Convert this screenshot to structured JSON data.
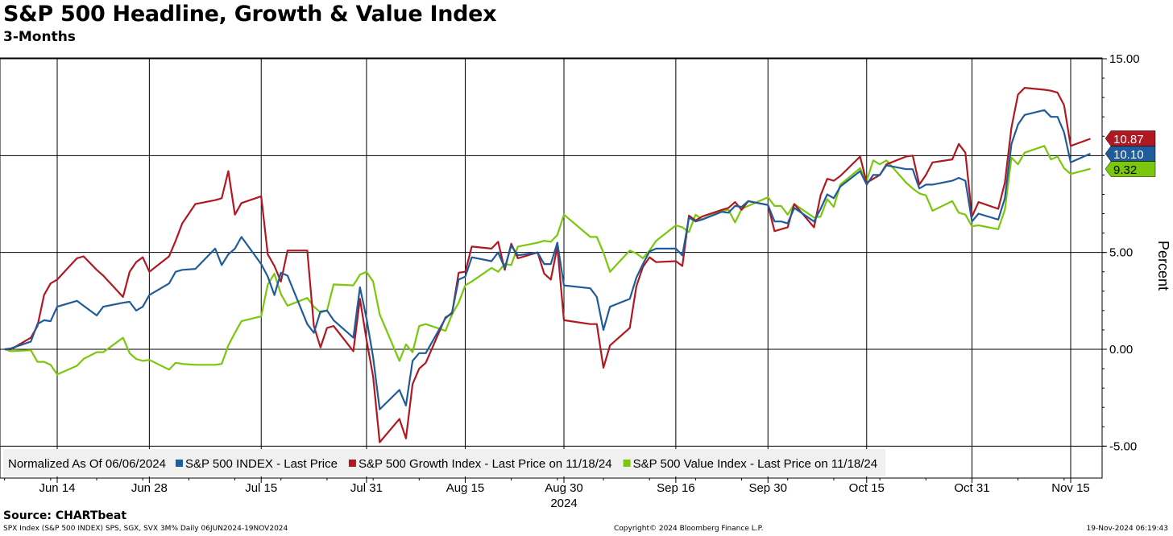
{
  "header": {
    "title": "S&P 500 Headline, Growth & Value Index",
    "subtitle": "3-Months"
  },
  "footer": {
    "source": "Source: CHARTbeat",
    "ticker_info": "SPX Index (S&P 500 INDEX) SPS, SGX, SVX 3M%  Daily 06JUN2024-19NOV2024",
    "copyright": "Copyright© 2024 Bloomberg Finance L.P.",
    "timestamp": "19-Nov-2024 06:19:43"
  },
  "legend": {
    "normalized_label": "Normalized As Of 06/06/2024"
  },
  "chart_data": {
    "type": "line",
    "ylabel": "Percent",
    "ylim": [
      -5.8,
      15.0
    ],
    "yticks": [
      15.0,
      5.0,
      0.0,
      -5.0
    ],
    "ytick_labels": [
      "15.00",
      "5.00",
      "0.00",
      "-5.00"
    ],
    "y_grid_values": [
      10.0
    ],
    "xlabel": "2024",
    "x_tick_dates": [
      "2024-06-14",
      "2024-06-28",
      "2024-07-15",
      "2024-07-31",
      "2024-08-15",
      "2024-08-30",
      "2024-09-16",
      "2024-09-30",
      "2024-10-15",
      "2024-10-31",
      "2024-11-15"
    ],
    "x_tick_labels": [
      "Jun 14",
      "Jun 28",
      "Jul 15",
      "Jul 31",
      "Aug 15",
      "Aug 30",
      "Sep 16",
      "Sep 30",
      "Oct 15",
      "Oct 31",
      "Nov 15"
    ],
    "grid": true,
    "legend_position": "bottom-left",
    "dates": [
      "2024-06-06",
      "2024-06-07",
      "2024-06-10",
      "2024-06-11",
      "2024-06-12",
      "2024-06-13",
      "2024-06-14",
      "2024-06-17",
      "2024-06-18",
      "2024-06-20",
      "2024-06-21",
      "2024-06-24",
      "2024-06-25",
      "2024-06-26",
      "2024-06-27",
      "2024-06-28",
      "2024-07-01",
      "2024-07-02",
      "2024-07-03",
      "2024-07-05",
      "2024-07-08",
      "2024-07-09",
      "2024-07-10",
      "2024-07-11",
      "2024-07-12",
      "2024-07-15",
      "2024-07-16",
      "2024-07-17",
      "2024-07-18",
      "2024-07-19",
      "2024-07-22",
      "2024-07-23",
      "2024-07-24",
      "2024-07-25",
      "2024-07-26",
      "2024-07-29",
      "2024-07-30",
      "2024-07-31",
      "2024-08-01",
      "2024-08-02",
      "2024-08-05",
      "2024-08-06",
      "2024-08-07",
      "2024-08-08",
      "2024-08-09",
      "2024-08-12",
      "2024-08-13",
      "2024-08-14",
      "2024-08-15",
      "2024-08-16",
      "2024-08-19",
      "2024-08-20",
      "2024-08-21",
      "2024-08-22",
      "2024-08-23",
      "2024-08-26",
      "2024-08-27",
      "2024-08-28",
      "2024-08-29",
      "2024-08-30",
      "2024-09-03",
      "2024-09-04",
      "2024-09-05",
      "2024-09-06",
      "2024-09-09",
      "2024-09-10",
      "2024-09-11",
      "2024-09-12",
      "2024-09-13",
      "2024-09-16",
      "2024-09-17",
      "2024-09-18",
      "2024-09-19",
      "2024-09-20",
      "2024-09-23",
      "2024-09-24",
      "2024-09-25",
      "2024-09-26",
      "2024-09-27",
      "2024-09-30",
      "2024-10-01",
      "2024-10-02",
      "2024-10-03",
      "2024-10-04",
      "2024-10-07",
      "2024-10-08",
      "2024-10-09",
      "2024-10-10",
      "2024-10-11",
      "2024-10-14",
      "2024-10-15",
      "2024-10-16",
      "2024-10-17",
      "2024-10-18",
      "2024-10-21",
      "2024-10-22",
      "2024-10-23",
      "2024-10-24",
      "2024-10-25",
      "2024-10-28",
      "2024-10-29",
      "2024-10-30",
      "2024-10-31",
      "2024-11-01",
      "2024-11-04",
      "2024-11-05",
      "2024-11-06",
      "2024-11-07",
      "2024-11-08",
      "2024-11-11",
      "2024-11-12",
      "2024-11-13",
      "2024-11-14",
      "2024-11-15",
      "2024-11-18"
    ],
    "series": [
      {
        "name": "S&P 500 INDEX - Last Price",
        "color": "#1f5c99",
        "last_value_label": "10.10",
        "values": [
          0.0,
          0.05,
          0.4,
          1.3,
          1.5,
          1.45,
          2.2,
          2.5,
          2.25,
          1.75,
          2.2,
          2.4,
          2.45,
          2.0,
          2.2,
          2.8,
          3.4,
          4.0,
          4.1,
          4.15,
          5.2,
          4.35,
          4.9,
          5.2,
          5.8,
          4.4,
          3.75,
          2.8,
          3.95,
          3.8,
          1.3,
          0.85,
          1.95,
          2.0,
          1.5,
          0.6,
          3.2,
          1.6,
          -0.4,
          -3.1,
          -2.1,
          -2.9,
          -0.6,
          -0.2,
          -0.2,
          1.6,
          1.9,
          3.6,
          3.75,
          4.75,
          4.55,
          5.0,
          4.2,
          5.35,
          4.85,
          5.0,
          4.4,
          4.4,
          5.5,
          3.3,
          3.15,
          2.7,
          1.0,
          2.2,
          2.6,
          3.7,
          4.4,
          5.05,
          5.2,
          5.2,
          4.85,
          6.8,
          6.6,
          6.7,
          7.1,
          7.05,
          7.4,
          7.35,
          7.65,
          7.45,
          6.6,
          6.6,
          6.5,
          7.3,
          6.6,
          7.25,
          8.0,
          7.8,
          8.4,
          9.2,
          8.5,
          9.0,
          9.0,
          9.5,
          9.3,
          9.3,
          8.3,
          8.5,
          8.5,
          8.7,
          8.85,
          8.7,
          6.6,
          7.0,
          6.7,
          7.8,
          10.6,
          11.6,
          12.1,
          12.35,
          12.0,
          12.0,
          11.2,
          9.65,
          10.1
        ]
      },
      {
        "name": "S&P 500 Growth Index - Last Price on 11/18/24",
        "color": "#b01822",
        "last_value_label": "10.87",
        "values": [
          0.0,
          0.0,
          0.6,
          1.2,
          2.8,
          3.4,
          3.6,
          4.7,
          4.8,
          4.1,
          3.8,
          2.7,
          4.0,
          4.5,
          4.75,
          4.0,
          4.8,
          5.6,
          6.5,
          7.5,
          7.7,
          7.8,
          9.2,
          6.95,
          7.55,
          7.9,
          4.9,
          4.3,
          3.5,
          5.1,
          5.1,
          1.2,
          0.1,
          1.1,
          1.2,
          -0.1,
          2.6,
          0.5,
          -1.4,
          -4.8,
          -3.6,
          -4.6,
          -1.8,
          -1.0,
          -0.7,
          1.65,
          1.85,
          3.95,
          4.0,
          5.3,
          5.2,
          5.55,
          4.1,
          5.45,
          4.7,
          5.0,
          3.9,
          3.6,
          5.3,
          1.5,
          1.3,
          1.3,
          -0.95,
          0.2,
          1.1,
          3.25,
          4.25,
          4.75,
          4.5,
          4.55,
          4.3,
          6.9,
          6.65,
          6.85,
          7.2,
          7.3,
          7.6,
          7.2,
          7.65,
          7.45,
          6.1,
          6.2,
          6.3,
          7.5,
          6.3,
          7.95,
          8.8,
          8.7,
          8.95,
          9.95,
          8.6,
          8.8,
          9.0,
          9.55,
          9.95,
          10.0,
          8.5,
          9.0,
          9.65,
          9.8,
          10.6,
          10.15,
          6.85,
          7.6,
          7.25,
          8.6,
          11.45,
          13.15,
          13.5,
          13.4,
          13.35,
          13.25,
          12.6,
          10.5,
          10.87
        ]
      },
      {
        "name": "S&P 500 Value Index - Last Price on 11/18/24",
        "color": "#7ac70c",
        "last_value_label": "9.32",
        "values": [
          0.0,
          -0.1,
          -0.05,
          -0.65,
          -0.65,
          -0.8,
          -1.3,
          -0.85,
          -0.5,
          -0.15,
          -0.15,
          0.6,
          -0.2,
          -0.5,
          -0.6,
          -0.55,
          -1.05,
          -0.7,
          -0.75,
          -0.8,
          -0.8,
          -0.75,
          0.2,
          0.85,
          1.45,
          1.7,
          3.35,
          3.9,
          2.85,
          2.25,
          2.65,
          2.2,
          1.9,
          2.0,
          3.35,
          3.3,
          3.85,
          4.0,
          3.5,
          1.8,
          -0.6,
          0.25,
          -0.15,
          1.2,
          1.3,
          0.95,
          1.8,
          2.4,
          3.3,
          3.5,
          4.2,
          4.0,
          4.4,
          4.35,
          5.3,
          5.5,
          5.6,
          5.55,
          5.9,
          6.95,
          5.8,
          5.8,
          5.0,
          4.0,
          5.1,
          4.95,
          4.7,
          5.1,
          5.6,
          6.4,
          6.3,
          6.05,
          6.95,
          6.7,
          7.15,
          7.2,
          6.55,
          7.25,
          7.4,
          7.85,
          7.4,
          7.4,
          6.95,
          7.5,
          6.8,
          6.85,
          7.75,
          7.35,
          8.5,
          9.35,
          8.7,
          9.75,
          9.55,
          9.75,
          8.6,
          8.3,
          8.05,
          7.95,
          7.15,
          7.65,
          7.05,
          6.95,
          6.35,
          6.4,
          6.2,
          7.2,
          9.9,
          9.55,
          10.15,
          10.5,
          9.8,
          9.95,
          9.35,
          9.05,
          9.32
        ]
      }
    ]
  }
}
